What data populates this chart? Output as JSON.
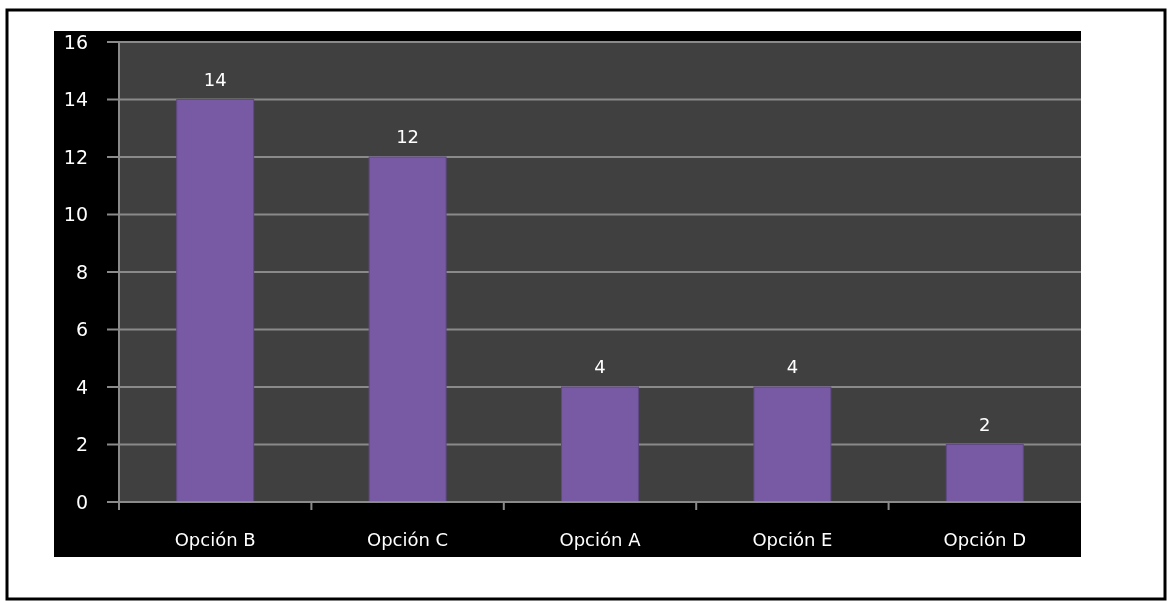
{
  "chart_data": {
    "type": "bar",
    "categories": [
      "Opción B",
      "Opción C",
      "Opción A",
      "Opción E",
      "Opción D"
    ],
    "values": [
      14,
      12,
      4,
      4,
      2
    ],
    "color": "#775aa3",
    "ylim": [
      0,
      16
    ],
    "yticks": [
      0,
      2,
      4,
      6,
      8,
      10,
      12,
      14,
      16
    ],
    "grid": "y",
    "data_labels": true
  }
}
